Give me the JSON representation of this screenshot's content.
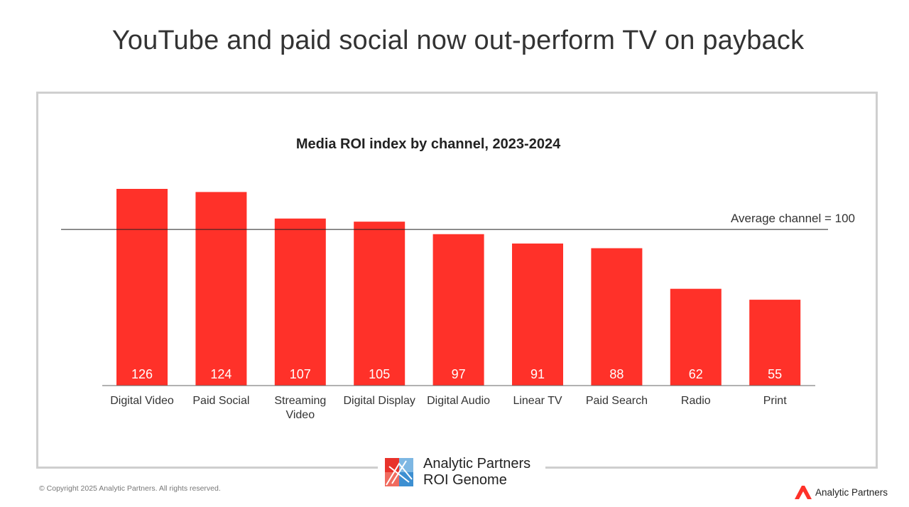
{
  "slide": {
    "title": "YouTube and paid social now out-perform TV on payback"
  },
  "chart_data": {
    "type": "bar",
    "title": "Media ROI index by channel, 2023-2024",
    "categories": [
      [
        "Digital Video"
      ],
      [
        "Paid Social"
      ],
      [
        "Streaming",
        "Video"
      ],
      [
        "Digital Display"
      ],
      [
        "Digital Audio"
      ],
      [
        "Linear TV"
      ],
      [
        "Paid Search"
      ],
      [
        "Radio"
      ],
      [
        "Print"
      ]
    ],
    "values": [
      126,
      124,
      107,
      105,
      97,
      91,
      88,
      62,
      55
    ],
    "value_labels": [
      "126",
      "124",
      "107",
      "105",
      "97",
      "91",
      "88",
      "62",
      "55"
    ],
    "reference_line": {
      "value": 100,
      "label": "Average channel = 100"
    },
    "ylim": [
      0,
      130
    ],
    "grid": false,
    "legend": "none",
    "bar_color": "#ff3129",
    "label_color": "#ffffff"
  },
  "brand": {
    "line1": "Analytic Partners",
    "line2": "ROI Genome",
    "logo_icon": "roi-genome-logo-icon"
  },
  "footer": {
    "copyright": "© Copyright 2025 Analytic Partners. All rights reserved.",
    "brand_name": "Analytic Partners",
    "brand_icon": "analytic-partners-logo-icon",
    "accent": "#ff3129"
  }
}
